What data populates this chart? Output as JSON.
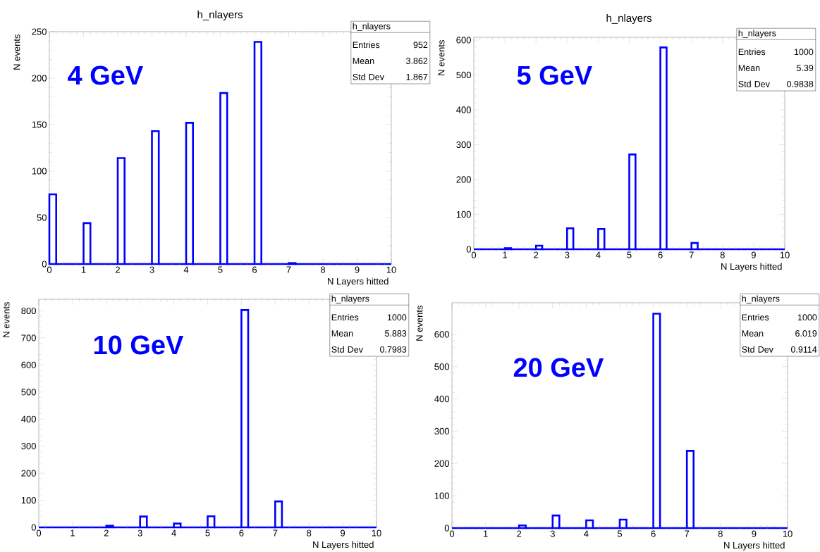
{
  "chart_data": [
    {
      "type": "histogram",
      "title": "h_nlayers",
      "xlabel": "N Layers hitted",
      "ylabel": "N events",
      "color": "#0000ff",
      "bins": [
        0,
        0.2,
        0.4,
        0.6,
        0.8,
        1,
        1.2,
        1.4,
        1.6,
        1.8,
        2,
        2.2,
        2.4,
        2.6,
        2.8,
        3,
        3.2,
        3.4,
        3.6,
        3.8,
        4,
        4.2,
        4.4,
        4.6,
        4.8,
        5,
        5.2,
        5.4,
        5.6,
        5.8,
        6,
        6.2,
        6.4,
        6.6,
        6.8,
        7,
        7.2,
        7.4,
        7.6,
        7.8,
        8,
        8.2,
        8.4,
        8.6,
        8.8,
        9,
        9.2,
        9.4,
        9.6,
        9.8,
        10
      ],
      "values": [
        75,
        0,
        0,
        0,
        0,
        44,
        0,
        0,
        0,
        0,
        114,
        0,
        0,
        0,
        0,
        143,
        0,
        0,
        0,
        0,
        152,
        0,
        0,
        0,
        0,
        184,
        0,
        0,
        0,
        0,
        239,
        0,
        0,
        0,
        0,
        1,
        0,
        0,
        0,
        0,
        0,
        0,
        0,
        0,
        0,
        0,
        0,
        0,
        0,
        0
      ],
      "xlim": [
        0,
        10
      ],
      "ylim": [
        0,
        250
      ],
      "xticks": [
        0,
        1,
        2,
        3,
        4,
        5,
        6,
        7,
        8,
        9,
        10
      ],
      "yticks": [
        0,
        50,
        100,
        150,
        200,
        250
      ],
      "annotations": [
        "4 GeV",
        "h_nlayers",
        "Entries",
        "952",
        "Mean",
        "3.862",
        "Std Dev",
        "1.867"
      ]
    },
    {
      "type": "histogram",
      "title": "h_nlayers",
      "xlabel": "N Layers hitted",
      "ylabel": "N events",
      "color": "#0000ff",
      "bins": [
        0,
        0.2,
        0.4,
        0.6,
        0.8,
        1,
        1.2,
        1.4,
        1.6,
        1.8,
        2,
        2.2,
        2.4,
        2.6,
        2.8,
        3,
        3.2,
        3.4,
        3.6,
        3.8,
        4,
        4.2,
        4.4,
        4.6,
        4.8,
        5,
        5.2,
        5.4,
        5.6,
        5.8,
        6,
        6.2,
        6.4,
        6.6,
        6.8,
        7,
        7.2,
        7.4,
        7.6,
        7.8,
        8,
        8.2,
        8.4,
        8.6,
        8.8,
        9,
        9.2,
        9.4,
        9.6,
        9.8,
        10
      ],
      "values": [
        0,
        0,
        0,
        0,
        0,
        3,
        0,
        0,
        0,
        0,
        10,
        0,
        0,
        0,
        0,
        60,
        0,
        0,
        0,
        0,
        58,
        0,
        0,
        0,
        0,
        272,
        0,
        0,
        0,
        0,
        579,
        0,
        0,
        0,
        0,
        18,
        0,
        0,
        0,
        0,
        0,
        0,
        0,
        0,
        0,
        0,
        0,
        0,
        0,
        0
      ],
      "xlim": [
        0,
        10
      ],
      "ylim": [
        0,
        608
      ],
      "xticks": [
        0,
        1,
        2,
        3,
        4,
        5,
        6,
        7,
        8,
        9,
        10
      ],
      "yticks": [
        0,
        100,
        200,
        300,
        400,
        500,
        600
      ],
      "annotations": [
        "5 GeV",
        "h_nlayers",
        "Entries",
        "1000",
        "Mean",
        "5.39",
        "Std Dev",
        "0.9838"
      ]
    },
    {
      "type": "histogram",
      "xlabel": "N Layers hitted",
      "ylabel": "N events",
      "color": "#0000ff",
      "bins": [
        0,
        0.2,
        0.4,
        0.6,
        0.8,
        1,
        1.2,
        1.4,
        1.6,
        1.8,
        2,
        2.2,
        2.4,
        2.6,
        2.8,
        3,
        3.2,
        3.4,
        3.6,
        3.8,
        4,
        4.2,
        4.4,
        4.6,
        4.8,
        5,
        5.2,
        5.4,
        5.6,
        5.8,
        6,
        6.2,
        6.4,
        6.6,
        6.8,
        7,
        7.2,
        7.4,
        7.6,
        7.8,
        8,
        8.2,
        8.4,
        8.6,
        8.8,
        9,
        9.2,
        9.4,
        9.6,
        9.8,
        10
      ],
      "values": [
        0,
        0,
        0,
        0,
        0,
        0,
        0,
        0,
        0,
        0,
        6,
        0,
        0,
        0,
        0,
        40,
        0,
        0,
        0,
        0,
        14,
        0,
        0,
        0,
        0,
        41,
        0,
        0,
        0,
        0,
        803,
        0,
        0,
        0,
        0,
        96,
        0,
        0,
        0,
        0,
        0,
        0,
        0,
        0,
        0,
        0,
        0,
        0,
        0,
        0
      ],
      "xlim": [
        0,
        10
      ],
      "ylim": [
        0,
        843
      ],
      "xticks": [
        0,
        1,
        2,
        3,
        4,
        5,
        6,
        7,
        8,
        9,
        10
      ],
      "yticks": [
        0,
        100,
        200,
        300,
        400,
        500,
        600,
        700,
        800
      ],
      "annotations": [
        "10 GeV",
        "h_nlayers",
        "Entries",
        "1000",
        "Mean",
        "5.883",
        "Std Dev",
        "0.7983"
      ]
    },
    {
      "type": "histogram",
      "xlabel": "N Layers hitted",
      "ylabel": "N events",
      "color": "#0000ff",
      "bins": [
        0,
        0.2,
        0.4,
        0.6,
        0.8,
        1,
        1.2,
        1.4,
        1.6,
        1.8,
        2,
        2.2,
        2.4,
        2.6,
        2.8,
        3,
        3.2,
        3.4,
        3.6,
        3.8,
        4,
        4.2,
        4.4,
        4.6,
        4.8,
        5,
        5.2,
        5.4,
        5.6,
        5.8,
        6,
        6.2,
        6.4,
        6.6,
        6.8,
        7,
        7.2,
        7.4,
        7.6,
        7.8,
        8,
        8.2,
        8.4,
        8.6,
        8.8,
        9,
        9.2,
        9.4,
        9.6,
        9.8,
        10
      ],
      "values": [
        0,
        0,
        0,
        0,
        0,
        0,
        0,
        0,
        0,
        0,
        8,
        0,
        0,
        0,
        0,
        39,
        0,
        0,
        0,
        0,
        24,
        0,
        0,
        0,
        0,
        26,
        0,
        0,
        0,
        0,
        664,
        0,
        0,
        0,
        0,
        239,
        0,
        0,
        0,
        0,
        0,
        0,
        0,
        0,
        0,
        0,
        0,
        0,
        0,
        0
      ],
      "xlim": [
        0,
        10
      ],
      "ylim": [
        0,
        698
      ],
      "xticks": [
        0,
        1,
        2,
        3,
        4,
        5,
        6,
        7,
        8,
        9,
        10
      ],
      "yticks": [
        0,
        100,
        200,
        300,
        400,
        500,
        600
      ],
      "annotations": [
        "20 GeV",
        "h_nlayers",
        "Entries",
        "1000",
        "Mean",
        "6.019",
        "Std Dev",
        "0.9114"
      ]
    }
  ]
}
